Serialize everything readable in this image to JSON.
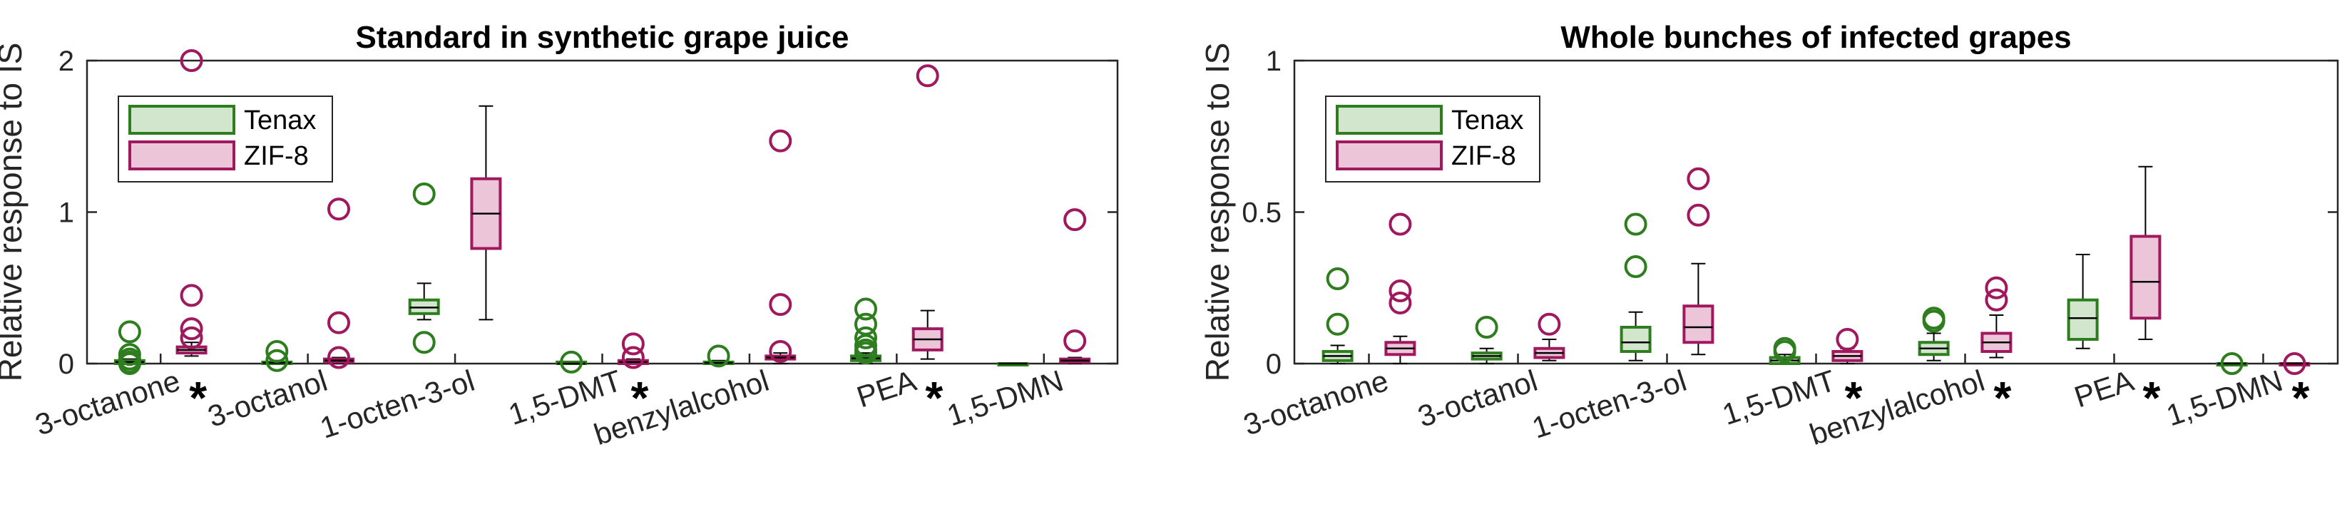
{
  "colors": {
    "Tenax": "#2e7d1f",
    "ZIF-8": "#a0185e",
    "Tenax_fill": "#d2e6cd",
    "ZIF-8_fill": "#ecc6d8",
    "axis": "#262626"
  },
  "chart_data": [
    {
      "type": "box",
      "title": "Standard in synthetic grape juice",
      "ylabel": "Relative response to IS",
      "ylim": [
        0,
        2
      ],
      "yticks": [
        0,
        1,
        2
      ],
      "legend": {
        "position": "top-left",
        "entries": [
          "Tenax",
          "ZIF-8"
        ]
      },
      "categories": [
        {
          "label": "3-octanone",
          "star": "*"
        },
        {
          "label": "3-octanol",
          "star": ""
        },
        {
          "label": "1-octen-3-ol",
          "star": ""
        },
        {
          "label": "1,5-DMT",
          "star": "*"
        },
        {
          "label": "benzylalcohol",
          "star": ""
        },
        {
          "label": "PEA",
          "star": "*"
        },
        {
          "label": "1,5-DMN",
          "star": ""
        }
      ],
      "series": [
        {
          "name": "Tenax",
          "boxes": [
            {
              "whisker_low": 0.0,
              "q1": 0.0,
              "median": 0.01,
              "q3": 0.02,
              "whisker_high": 0.03,
              "outliers": [
                0.21,
                0.06,
                0.03,
                0.01,
                0.0
              ]
            },
            {
              "whisker_low": 0.0,
              "q1": 0.0,
              "median": 0.005,
              "q3": 0.01,
              "whisker_high": 0.02,
              "outliers": [
                0.08,
                0.02
              ]
            },
            {
              "whisker_low": 0.29,
              "q1": 0.33,
              "median": 0.37,
              "q3": 0.42,
              "whisker_high": 0.53,
              "outliers": [
                1.12,
                0.14
              ]
            },
            {
              "whisker_low": 0.0,
              "q1": 0.0,
              "median": 0.0,
              "q3": 0.01,
              "whisker_high": 0.01,
              "outliers": [
                0.01
              ]
            },
            {
              "whisker_low": 0.0,
              "q1": 0.0,
              "median": 0.005,
              "q3": 0.01,
              "whisker_high": 0.02,
              "outliers": [
                0.05
              ]
            },
            {
              "whisker_low": 0.0,
              "q1": 0.02,
              "median": 0.035,
              "q3": 0.05,
              "whisker_high": 0.07,
              "outliers": [
                0.36,
                0.26,
                0.17,
                0.12,
                0.09,
                0.07
              ]
            },
            {
              "whisker_low": 0.0,
              "q1": 0.0,
              "median": 0.0,
              "q3": 0.0,
              "whisker_high": 0.0,
              "outliers": []
            }
          ]
        },
        {
          "name": "ZIF-8",
          "boxes": [
            {
              "whisker_low": 0.05,
              "q1": 0.07,
              "median": 0.09,
              "q3": 0.11,
              "whisker_high": 0.14,
              "outliers": [
                2.0,
                0.45,
                0.23,
                0.17
              ]
            },
            {
              "whisker_low": 0.0,
              "q1": 0.01,
              "median": 0.02,
              "q3": 0.03,
              "whisker_high": 0.04,
              "outliers": [
                1.02,
                0.27,
                0.04
              ]
            },
            {
              "whisker_low": 0.29,
              "q1": 0.76,
              "median": 0.99,
              "q3": 1.22,
              "whisker_high": 1.7,
              "outliers": []
            },
            {
              "whisker_low": 0.0,
              "q1": 0.0,
              "median": 0.01,
              "q3": 0.02,
              "whisker_high": 0.03,
              "outliers": [
                0.13,
                0.04
              ]
            },
            {
              "whisker_low": 0.0,
              "q1": 0.03,
              "median": 0.04,
              "q3": 0.05,
              "whisker_high": 0.07,
              "outliers": [
                1.47,
                0.39,
                0.08
              ]
            },
            {
              "whisker_low": 0.03,
              "q1": 0.09,
              "median": 0.16,
              "q3": 0.23,
              "whisker_high": 0.35,
              "outliers": [
                1.9
              ]
            },
            {
              "whisker_low": 0.0,
              "q1": 0.01,
              "median": 0.02,
              "q3": 0.03,
              "whisker_high": 0.04,
              "outliers": [
                0.95,
                0.15
              ]
            }
          ]
        }
      ]
    },
    {
      "type": "box",
      "title": "Whole bunches of infected grapes",
      "ylabel": "Relative response to IS",
      "ylim": [
        0,
        1
      ],
      "yticks": [
        0,
        0.5,
        1
      ],
      "legend": {
        "position": "top-left",
        "entries": [
          "Tenax",
          "ZIF-8"
        ]
      },
      "categories": [
        {
          "label": "3-octanone",
          "star": ""
        },
        {
          "label": "3-octanol",
          "star": ""
        },
        {
          "label": "1-octen-3-ol",
          "star": ""
        },
        {
          "label": "1,5-DMT",
          "star": "*"
        },
        {
          "label": "benzylalcohol",
          "star": "*"
        },
        {
          "label": "PEA",
          "star": "*"
        },
        {
          "label": "1,5-DMN",
          "star": "*"
        }
      ],
      "series": [
        {
          "name": "Tenax",
          "boxes": [
            {
              "whisker_low": 0.0,
              "q1": 0.01,
              "median": 0.025,
              "q3": 0.04,
              "whisker_high": 0.06,
              "outliers": [
                0.28,
                0.13
              ]
            },
            {
              "whisker_low": 0.0,
              "q1": 0.015,
              "median": 0.025,
              "q3": 0.035,
              "whisker_high": 0.05,
              "outliers": [
                0.12
              ]
            },
            {
              "whisker_low": 0.01,
              "q1": 0.04,
              "median": 0.07,
              "q3": 0.12,
              "whisker_high": 0.17,
              "outliers": [
                0.46,
                0.32
              ]
            },
            {
              "whisker_low": 0.0,
              "q1": 0.0,
              "median": 0.01,
              "q3": 0.02,
              "whisker_high": 0.03,
              "outliers": [
                0.05,
                0.04
              ]
            },
            {
              "whisker_low": 0.01,
              "q1": 0.03,
              "median": 0.05,
              "q3": 0.07,
              "whisker_high": 0.1,
              "outliers": [
                0.15,
                0.14
              ]
            },
            {
              "whisker_low": 0.05,
              "q1": 0.08,
              "median": 0.15,
              "q3": 0.21,
              "whisker_high": 0.36,
              "outliers": []
            },
            {
              "whisker_low": 0.0,
              "q1": 0.0,
              "median": 0.0,
              "q3": 0.0,
              "whisker_high": 0.0,
              "outliers": [
                0.0
              ]
            }
          ]
        },
        {
          "name": "ZIF-8",
          "boxes": [
            {
              "whisker_low": 0.0,
              "q1": 0.03,
              "median": 0.05,
              "q3": 0.07,
              "whisker_high": 0.09,
              "outliers": [
                0.46,
                0.24,
                0.2
              ]
            },
            {
              "whisker_low": 0.01,
              "q1": 0.02,
              "median": 0.035,
              "q3": 0.05,
              "whisker_high": 0.08,
              "outliers": [
                0.13
              ]
            },
            {
              "whisker_low": 0.03,
              "q1": 0.07,
              "median": 0.12,
              "q3": 0.19,
              "whisker_high": 0.33,
              "outliers": [
                0.61,
                0.49
              ]
            },
            {
              "whisker_low": 0.0,
              "q1": 0.01,
              "median": 0.025,
              "q3": 0.04,
              "whisker_high": 0.05,
              "outliers": [
                0.08
              ]
            },
            {
              "whisker_low": 0.02,
              "q1": 0.04,
              "median": 0.07,
              "q3": 0.1,
              "whisker_high": 0.16,
              "outliers": [
                0.25,
                0.21
              ]
            },
            {
              "whisker_low": 0.08,
              "q1": 0.15,
              "median": 0.27,
              "q3": 0.42,
              "whisker_high": 0.65,
              "outliers": []
            },
            {
              "whisker_low": 0.0,
              "q1": 0.0,
              "median": 0.0,
              "q3": 0.0,
              "whisker_high": 0.0,
              "outliers": [
                0.0
              ]
            }
          ]
        }
      ]
    }
  ]
}
